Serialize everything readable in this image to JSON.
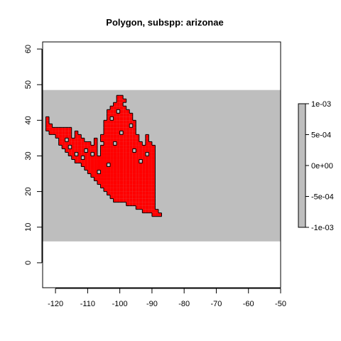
{
  "chart_data": {
    "type": "map",
    "title": "Polygon, subspp: arizonae",
    "xlim": [
      -124,
      -50
    ],
    "ylim": [
      -7,
      62
    ],
    "x_ticks": [
      "-120",
      "-110",
      "-100",
      "-90",
      "-80",
      "-70",
      "-60",
      "-50"
    ],
    "x_tick_values": [
      -120,
      -110,
      -100,
      -90,
      -80,
      -70,
      -60,
      -50
    ],
    "y_ticks": [
      "0",
      "10",
      "20",
      "30",
      "40",
      "50",
      "60"
    ],
    "y_tick_values": [
      0,
      10,
      20,
      30,
      40,
      50,
      60
    ],
    "raster_band": {
      "ymin": 6,
      "ymax": 48.5,
      "color": "#bebebe"
    },
    "polygon": {
      "fill": "#ff0000",
      "stroke": "#000000",
      "cell_size": 1,
      "note_cells_col_range_row_ranges": [
        [
          -123,
          40,
          41
        ],
        [
          -123,
          37,
          40
        ],
        [
          -122,
          36,
          39
        ],
        [
          -121,
          36,
          38
        ],
        [
          -120,
          35,
          38
        ],
        [
          -119,
          33,
          38
        ],
        [
          -118,
          32,
          38
        ],
        [
          -117,
          31,
          38
        ],
        [
          -116,
          30,
          38
        ],
        [
          -115,
          29,
          35
        ],
        [
          -114,
          28,
          37
        ],
        [
          -113,
          28,
          36
        ],
        [
          -112,
          27,
          35
        ],
        [
          -111,
          26,
          34
        ],
        [
          -110,
          25,
          34
        ],
        [
          -109,
          24,
          33
        ],
        [
          -108,
          23,
          35
        ],
        [
          -107,
          22,
          30
        ],
        [
          -106,
          21,
          36
        ],
        [
          -105,
          20,
          40
        ],
        [
          -104,
          19,
          43
        ],
        [
          -103,
          18,
          44
        ],
        [
          -102,
          17,
          45
        ],
        [
          -101,
          17,
          47
        ],
        [
          -100,
          17,
          47
        ],
        [
          -99,
          17,
          46
        ],
        [
          -98,
          16,
          43
        ],
        [
          -97,
          16,
          42
        ],
        [
          -96,
          16,
          40
        ],
        [
          -95,
          15,
          36
        ],
        [
          -94,
          15,
          34
        ],
        [
          -93,
          14,
          33
        ],
        [
          -92,
          14,
          36
        ],
        [
          -91,
          14,
          34
        ],
        [
          -90,
          13,
          33
        ],
        [
          -89,
          13,
          15
        ],
        [
          -88,
          13,
          14
        ]
      ]
    },
    "legend": {
      "type": "colorbar",
      "labels": [
        "1e-03",
        "5e-04",
        "0e+00",
        "-5e-04",
        "-1e-03"
      ],
      "values": [
        0.001,
        0.0005,
        0,
        -0.0005,
        -0.001
      ],
      "color": "#bebebe"
    }
  }
}
